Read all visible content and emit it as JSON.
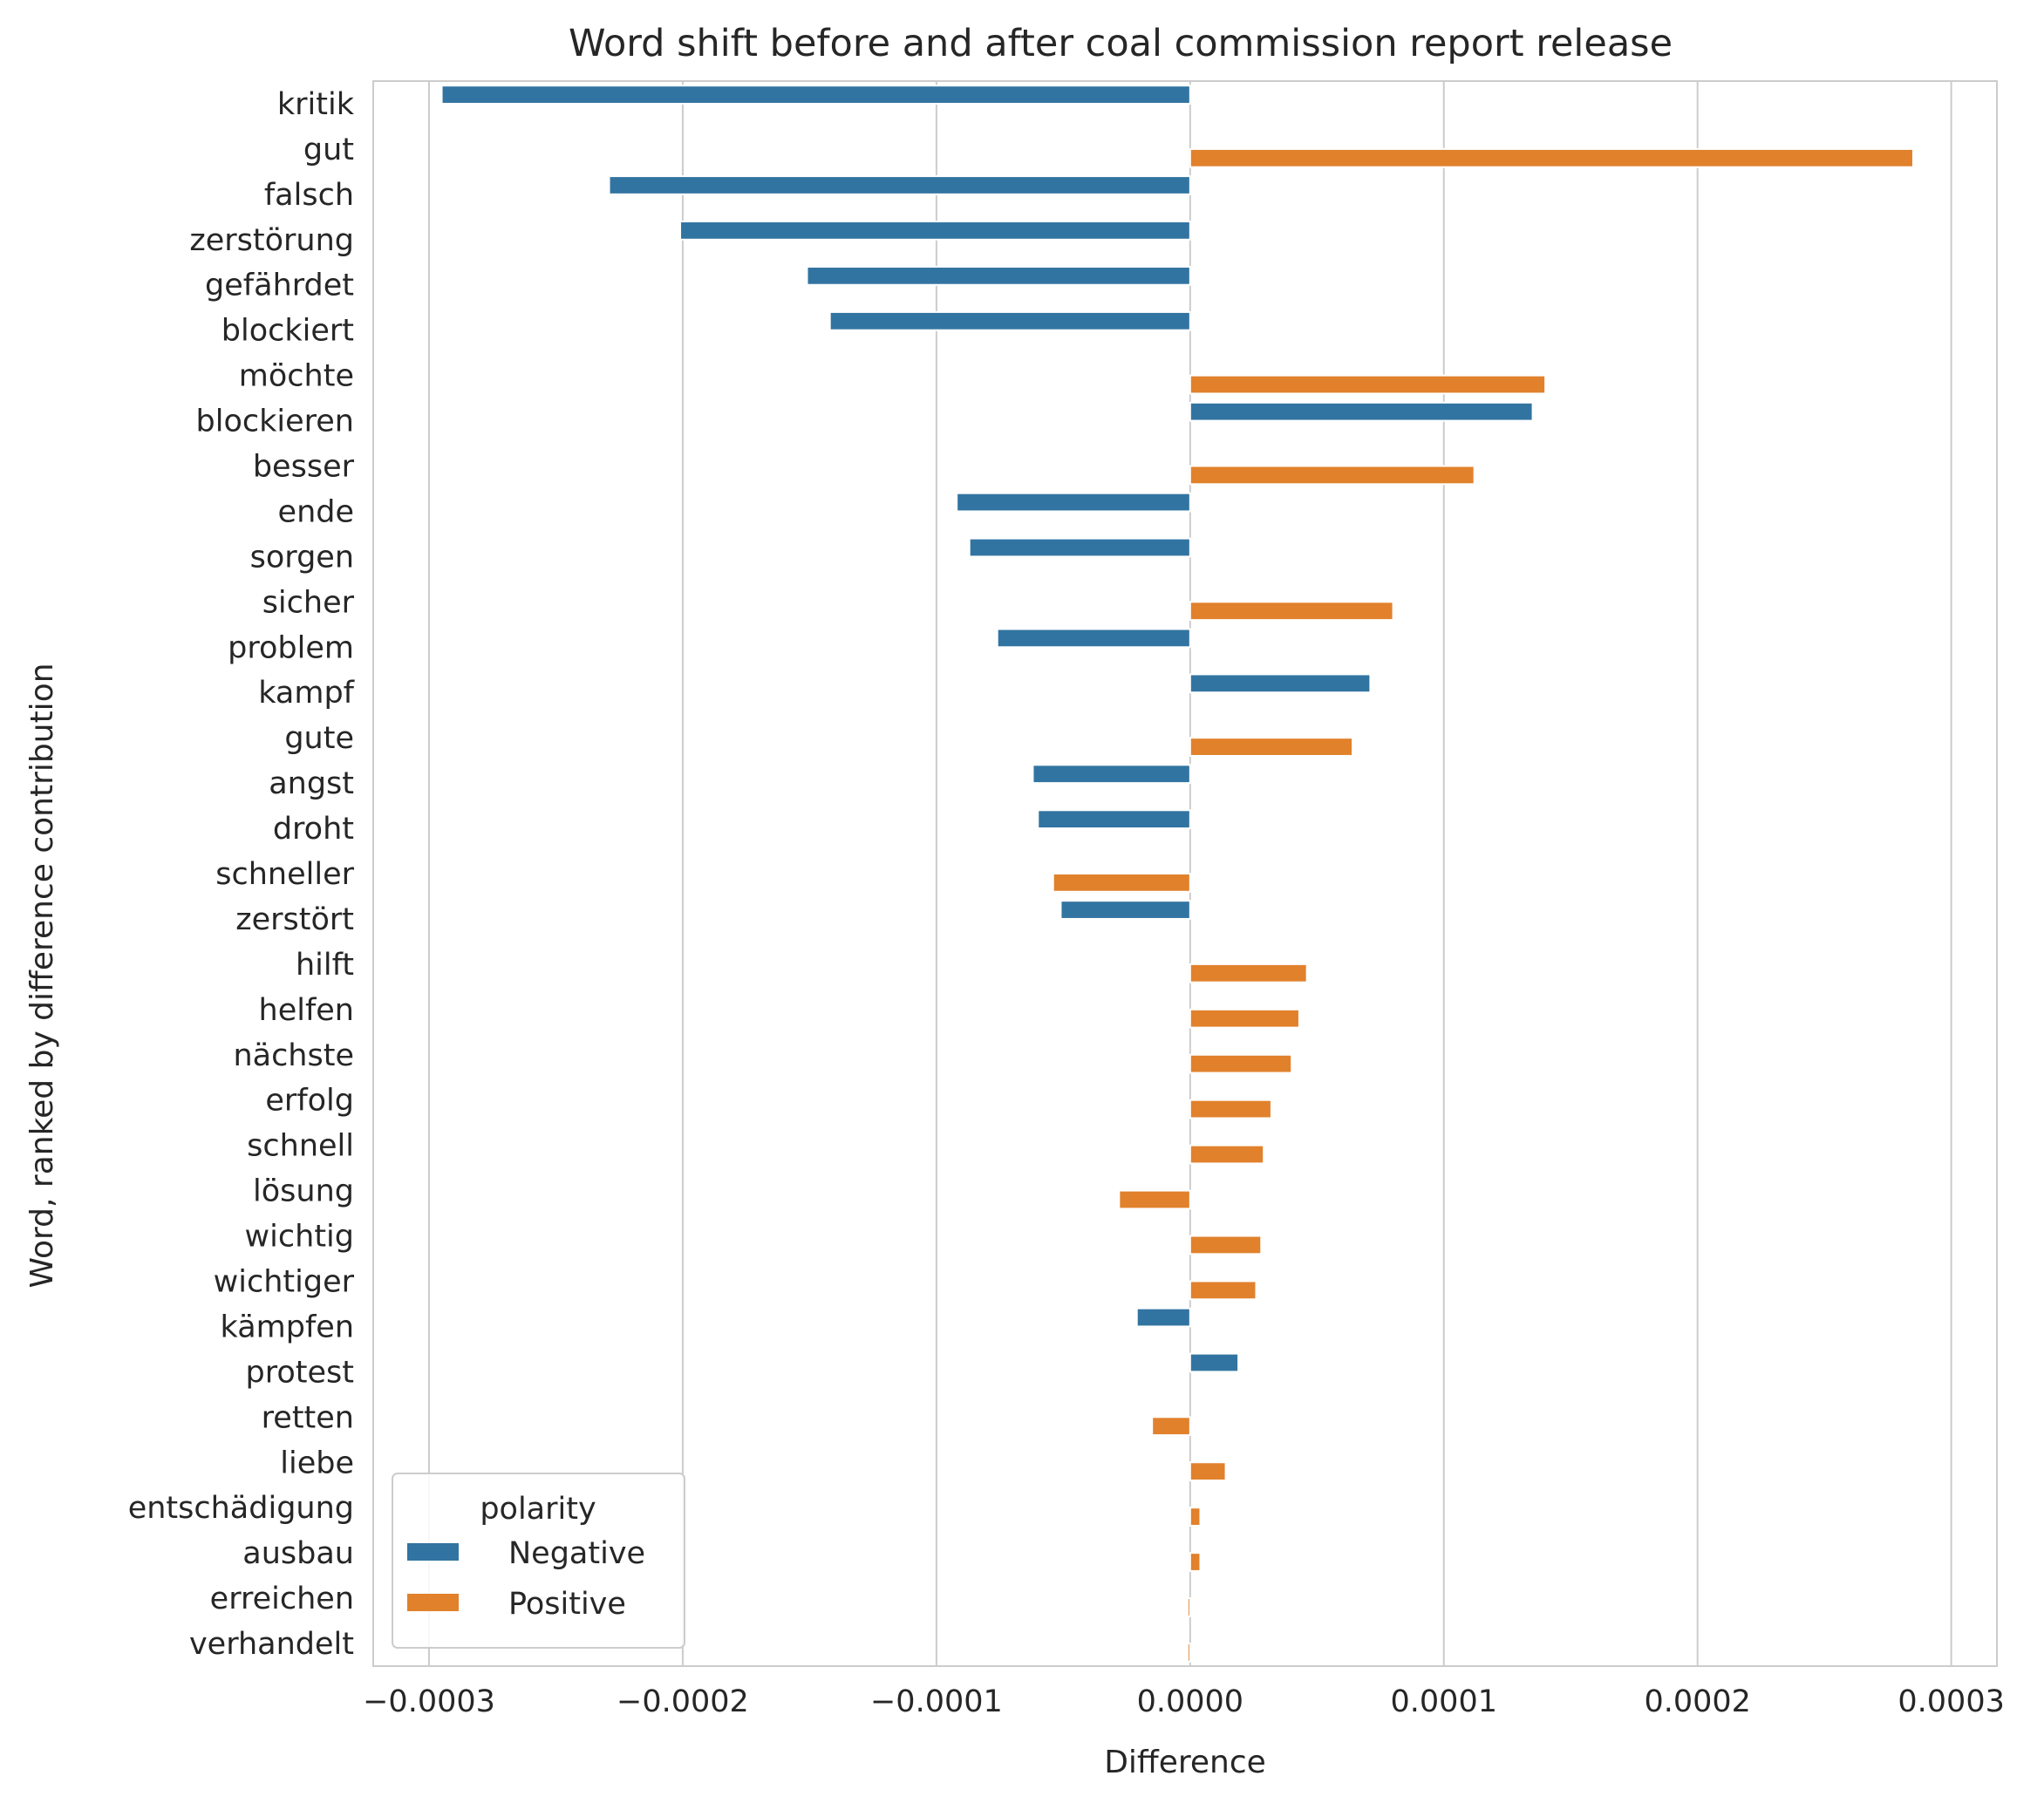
{
  "chart_data": {
    "type": "bar",
    "orientation": "horizontal",
    "title": "Word shift before and after coal commission report release",
    "xlabel": "Difference",
    "ylabel": "Word, ranked by difference contribution",
    "xlim": [
      -0.000322,
      0.000318
    ],
    "xticks": [
      -0.0003,
      -0.0002,
      -0.0001,
      0.0,
      0.0001,
      0.0002,
      0.0003
    ],
    "xtick_labels": [
      "−0.0003",
      "−0.0002",
      "−0.0001",
      "0.0000",
      "0.0001",
      "0.0002",
      "0.0003"
    ],
    "grid": "vertical",
    "legend": {
      "title": "polarity",
      "placement": "lower-left",
      "entries": [
        {
          "label": "Negative",
          "color": "#3274a1"
        },
        {
          "label": "Positive",
          "color": "#e1812c"
        }
      ]
    },
    "series": [
      {
        "name": "Negative",
        "color": "#3274a1"
      },
      {
        "name": "Positive",
        "color": "#e1812c"
      }
    ],
    "categories": [
      "kritik",
      "gut",
      "falsch",
      "zerstörung",
      "gefährdet",
      "blockiert",
      "möchte",
      "blockieren",
      "besser",
      "ende",
      "sorgen",
      "sicher",
      "problem",
      "kampf",
      "gute",
      "angst",
      "droht",
      "schneller",
      "zerstört",
      "hilft",
      "helfen",
      "nächste",
      "erfolg",
      "schnell",
      "lösung",
      "wichtig",
      "wichtiger",
      "kämpfen",
      "protest",
      "retten",
      "liebe",
      "entschädigung",
      "ausbau",
      "erreichen",
      "verhandelt"
    ],
    "values": [
      -0.000295,
      0.000285,
      -0.000229,
      -0.000201,
      -0.000151,
      -0.000142,
      0.00014,
      0.000135,
      0.000112,
      -9.2e-05,
      -8.7e-05,
      8e-05,
      -7.6e-05,
      7.1e-05,
      6.4e-05,
      -6.2e-05,
      -6e-05,
      -5.4e-05,
      -5.1e-05,
      4.6e-05,
      4.3e-05,
      4e-05,
      3.2e-05,
      2.9e-05,
      -2.8e-05,
      2.8e-05,
      2.6e-05,
      -2.1e-05,
      1.9e-05,
      -1.5e-05,
      1.4e-05,
      4e-06,
      4e-06,
      -1e-06,
      -1e-06
    ],
    "polarity": [
      "Negative",
      "Positive",
      "Negative",
      "Negative",
      "Negative",
      "Negative",
      "Positive",
      "Negative",
      "Positive",
      "Negative",
      "Negative",
      "Positive",
      "Negative",
      "Negative",
      "Positive",
      "Negative",
      "Negative",
      "Positive",
      "Negative",
      "Positive",
      "Positive",
      "Positive",
      "Positive",
      "Positive",
      "Positive",
      "Positive",
      "Positive",
      "Negative",
      "Negative",
      "Positive",
      "Positive",
      "Positive",
      "Positive",
      "Positive",
      "Positive"
    ]
  }
}
